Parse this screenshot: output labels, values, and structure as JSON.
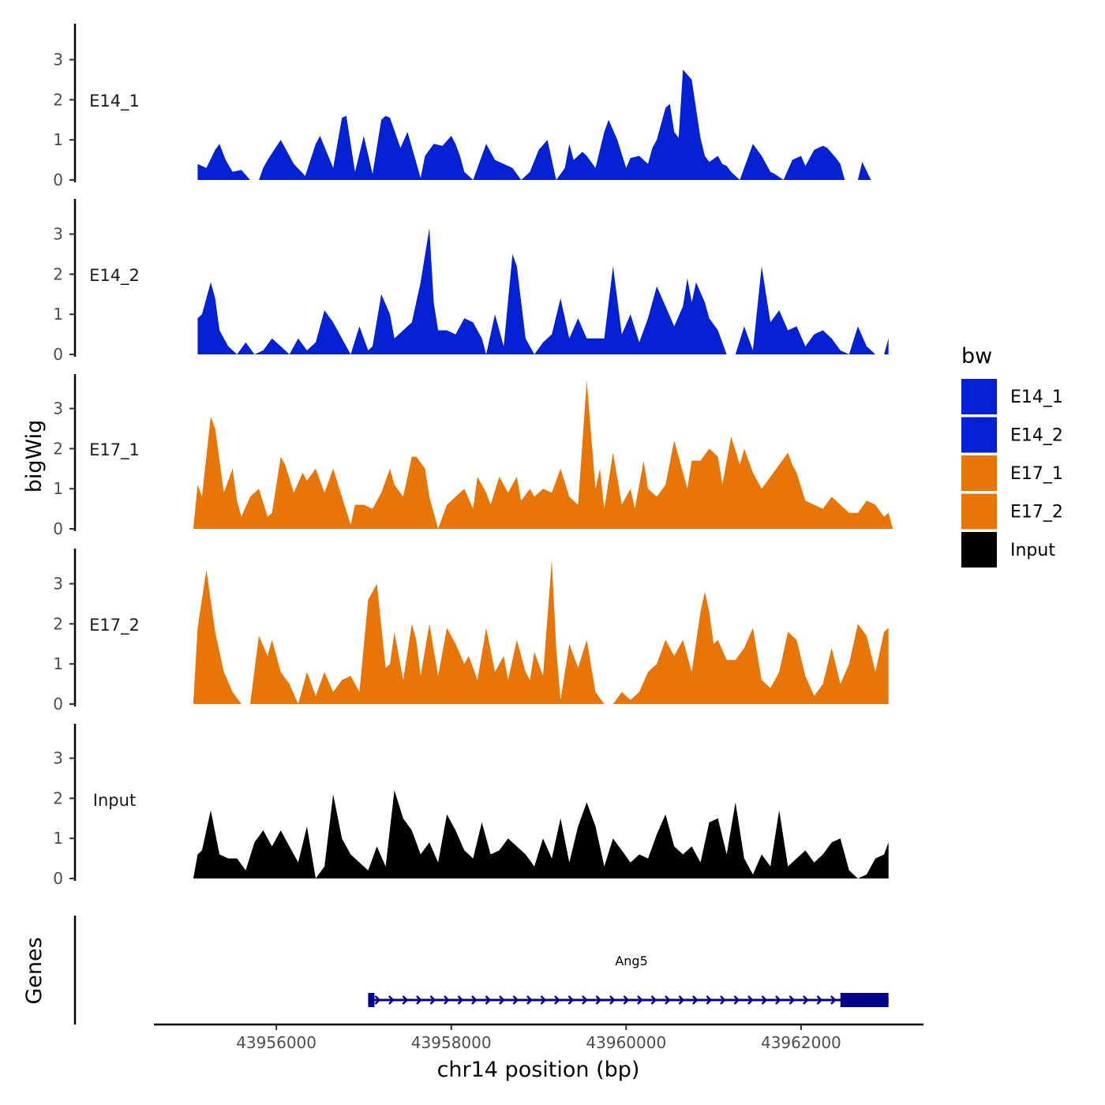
{
  "chart_data": {
    "type": "area",
    "title": "",
    "xlabel": "chr14 position (bp)",
    "ylabel": "bigWig",
    "genes_label": "Genes",
    "xlim": [
      43954600,
      43963400
    ],
    "ylim": [
      0,
      3.8
    ],
    "x_ticks": [
      43956000,
      43958000,
      43960000,
      43962000
    ],
    "x_tick_labels": [
      "43956000",
      "43958000",
      "43960000",
      "43962000"
    ],
    "y_ticks": [
      0,
      1,
      2,
      3
    ],
    "y_tick_labels": [
      "0",
      "1",
      "2",
      "3"
    ],
    "legend": {
      "title": "bw",
      "position": "right",
      "entries": [
        {
          "label": "E14_1",
          "color": "#0320d2"
        },
        {
          "label": "E14_2",
          "color": "#0320d2"
        },
        {
          "label": "E17_1",
          "color": "#e87508"
        },
        {
          "label": "E17_2",
          "color": "#e87508"
        },
        {
          "label": "Input",
          "color": "#000000"
        }
      ]
    },
    "series": [
      {
        "name": "E14_1",
        "color": "#0320d2",
        "x": [
          43955100,
          43955200,
          43955300,
          43955350,
          43955420,
          43955500,
          43955600,
          43955700,
          43955800,
          43955850,
          43955900,
          43956050,
          43956200,
          43956330,
          43956450,
          43956500,
          43956650,
          43956750,
          43956800,
          43956900,
          43957000,
          43957100,
          43957200,
          43957250,
          43957300,
          43957420,
          43957500,
          43957650,
          43957700,
          43957800,
          43957900,
          43958000,
          43958050,
          43958100,
          43958150,
          43958250,
          43958300,
          43958400,
          43958500,
          43958600,
          43958700,
          43958800,
          43958900,
          43959000,
          43959100,
          43959200,
          43959300,
          43959350,
          43959400,
          43959500,
          43959550,
          43959650,
          43959750,
          43959800,
          43959900,
          43960000,
          43960050,
          43960150,
          43960250,
          43960300,
          43960350,
          43960450,
          43960500,
          43960550,
          43960600,
          43960650,
          43960750,
          43960850,
          43960900,
          43960950,
          43961050,
          43961100,
          43961150,
          43961200,
          43961300,
          43961450,
          43961550,
          43961650,
          43961700,
          43961800,
          43961900,
          43962000,
          43962050,
          43962150,
          43962250,
          43962300,
          43962400,
          43962450,
          43962500,
          43962600,
          43962650,
          43962700,
          43962800,
          43962900,
          43963000
        ],
        "y": [
          0.4,
          0.3,
          0.75,
          0.9,
          0.5,
          0.2,
          0.25,
          0.0,
          0.0,
          0.3,
          0.5,
          1.0,
          0.4,
          0.1,
          0.9,
          1.1,
          0.3,
          1.55,
          1.6,
          0.2,
          1.1,
          0.15,
          1.5,
          1.6,
          1.55,
          0.8,
          1.2,
          0.05,
          0.6,
          0.9,
          0.85,
          1.1,
          0.9,
          0.6,
          0.2,
          0.0,
          0.3,
          0.9,
          0.5,
          0.4,
          0.3,
          0.0,
          0.2,
          0.75,
          1.0,
          0.0,
          0.3,
          0.9,
          0.5,
          0.7,
          0.6,
          0.3,
          1.2,
          1.5,
          1.0,
          0.3,
          0.55,
          0.6,
          0.4,
          0.8,
          1.0,
          1.8,
          1.9,
          1.2,
          1.05,
          2.75,
          2.5,
          1.05,
          0.6,
          0.45,
          0.6,
          0.4,
          0.35,
          0.2,
          0.0,
          0.9,
          0.6,
          0.2,
          0.15,
          0.0,
          0.5,
          0.6,
          0.35,
          0.75,
          0.85,
          0.8,
          0.55,
          0.4,
          0.0,
          0.0,
          0.0,
          0.45,
          0.0,
          0.0,
          0.0
        ]
      },
      {
        "name": "E14_2",
        "color": "#0320d2",
        "x": [
          43955100,
          43955150,
          43955250,
          43955300,
          43955350,
          43955450,
          43955550,
          43955650,
          43955750,
          43955850,
          43955950,
          43956050,
          43956150,
          43956250,
          43956350,
          43956450,
          43956550,
          43956650,
          43956750,
          43956850,
          43956950,
          43957050,
          43957100,
          43957200,
          43957300,
          43957350,
          43957450,
          43957550,
          43957650,
          43957750,
          43957800,
          43957850,
          43957950,
          43958050,
          43958150,
          43958250,
          43958350,
          43958400,
          43958500,
          43958600,
          43958700,
          43958750,
          43958850,
          43958950,
          43959050,
          43959150,
          43959250,
          43959350,
          43959450,
          43959550,
          43959650,
          43959750,
          43959850,
          43959950,
          43960050,
          43960150,
          43960250,
          43960350,
          43960450,
          43960550,
          43960650,
          43960700,
          43960750,
          43960800,
          43960900,
          43960950,
          43961050,
          43961150,
          43961250,
          43961350,
          43961450,
          43961550,
          43961650,
          43961750,
          43961850,
          43961950,
          43962050,
          43962150,
          43962250,
          43962350,
          43962450,
          43962550,
          43962650,
          43962750,
          43962850,
          43962950,
          43963000
        ],
        "y": [
          0.9,
          1.0,
          1.8,
          1.4,
          0.6,
          0.2,
          0.0,
          0.3,
          0.0,
          0.1,
          0.4,
          0.2,
          0.0,
          0.4,
          0.1,
          0.3,
          1.1,
          0.8,
          0.4,
          0.0,
          0.7,
          0.1,
          0.2,
          1.5,
          1.0,
          0.4,
          0.6,
          0.8,
          1.8,
          3.15,
          1.3,
          0.6,
          0.6,
          0.5,
          0.9,
          0.8,
          0.4,
          0.0,
          1.0,
          0.2,
          2.5,
          2.2,
          0.4,
          0.0,
          0.3,
          0.5,
          1.4,
          0.4,
          0.9,
          0.4,
          0.4,
          0.4,
          2.2,
          0.5,
          1.0,
          0.3,
          0.9,
          1.7,
          1.2,
          0.7,
          1.2,
          1.9,
          1.3,
          1.8,
          1.3,
          0.9,
          0.6,
          0.0,
          0.0,
          0.7,
          0.1,
          2.2,
          0.8,
          1.1,
          0.6,
          0.7,
          0.2,
          0.5,
          0.6,
          0.4,
          0.1,
          0.0,
          0.7,
          0.2,
          0.0,
          0.0,
          0.4
        ]
      },
      {
        "name": "E17_1",
        "color": "#e87508",
        "x": [
          43955050,
          43955100,
          43955150,
          43955250,
          43955300,
          43955400,
          43955500,
          43955550,
          43955600,
          43955700,
          43955800,
          43955900,
          43955950,
          43956050,
          43956100,
          43956200,
          43956300,
          43956350,
          43956450,
          43956550,
          43956650,
          43956750,
          43956850,
          43956900,
          43957000,
          43957100,
          43957200,
          43957300,
          43957350,
          43957450,
          43957550,
          43957600,
          43957700,
          43957750,
          43957850,
          43957950,
          43958050,
          43958150,
          43958250,
          43958300,
          43958400,
          43958450,
          43958550,
          43958650,
          43958750,
          43958800,
          43958900,
          43958950,
          43959050,
          43959150,
          43959250,
          43959350,
          43959450,
          43959550,
          43959650,
          43959700,
          43959750,
          43959850,
          43959950,
          43960050,
          43960100,
          43960200,
          43960250,
          43960350,
          43960450,
          43960550,
          43960650,
          43960700,
          43960750,
          43960850,
          43960950,
          43961050,
          43961100,
          43961200,
          43961300,
          43961350,
          43961450,
          43961550,
          43961650,
          43961750,
          43961850,
          43961900,
          43961950,
          43962050,
          43962150,
          43962250,
          43962350,
          43962450,
          43962550,
          43962650,
          43962750,
          43962850,
          43962950,
          43963000,
          43963050
        ],
        "y": [
          0.0,
          1.1,
          0.8,
          2.8,
          2.5,
          0.9,
          1.5,
          0.7,
          0.3,
          0.8,
          1.0,
          0.3,
          0.4,
          1.8,
          1.6,
          0.9,
          1.4,
          1.2,
          1.5,
          0.9,
          1.5,
          0.8,
          0.1,
          0.6,
          0.6,
          0.5,
          0.9,
          1.5,
          1.1,
          0.8,
          1.8,
          1.8,
          1.5,
          0.8,
          0.0,
          0.6,
          0.8,
          1.0,
          0.5,
          1.3,
          0.9,
          0.6,
          1.3,
          0.9,
          1.3,
          0.7,
          1.0,
          0.8,
          1.0,
          0.9,
          1.5,
          0.8,
          0.6,
          3.7,
          1.0,
          1.5,
          0.5,
          1.9,
          0.6,
          1.0,
          0.5,
          1.7,
          1.0,
          0.8,
          1.1,
          2.2,
          1.4,
          1.0,
          1.7,
          1.7,
          2.0,
          1.8,
          1.1,
          2.3,
          1.6,
          2.0,
          1.4,
          1.0,
          1.3,
          1.6,
          1.9,
          1.6,
          1.4,
          0.7,
          0.6,
          0.5,
          0.8,
          0.6,
          0.4,
          0.4,
          0.7,
          0.6,
          0.3,
          0.4,
          0.0
        ]
      },
      {
        "name": "E17_2",
        "color": "#e87508",
        "x": [
          43955050,
          43955100,
          43955200,
          43955300,
          43955400,
          43955500,
          43955600,
          43955700,
          43955800,
          43955900,
          43955950,
          43956050,
          43956150,
          43956250,
          43956350,
          43956450,
          43956550,
          43956650,
          43956750,
          43956850,
          43956950,
          43957050,
          43957150,
          43957250,
          43957300,
          43957350,
          43957450,
          43957550,
          43957600,
          43957650,
          43957750,
          43957850,
          43957950,
          43958050,
          43958150,
          43958200,
          43958300,
          43958400,
          43958500,
          43958600,
          43958650,
          43958750,
          43958850,
          43958900,
          43958950,
          43959050,
          43959150,
          43959200,
          43959250,
          43959350,
          43959450,
          43959550,
          43959650,
          43959750,
          43959850,
          43959950,
          43960050,
          43960150,
          43960250,
          43960350,
          43960450,
          43960550,
          43960650,
          43960750,
          43960850,
          43960900,
          43960950,
          43961000,
          43961050,
          43961150,
          43961250,
          43961350,
          43961450,
          43961550,
          43961650,
          43961750,
          43961850,
          43961950,
          43962050,
          43962150,
          43962250,
          43962350,
          43962450,
          43962550,
          43962650,
          43962750,
          43962850,
          43962950,
          43963000
        ],
        "y": [
          0.0,
          1.9,
          3.35,
          1.8,
          0.8,
          0.3,
          0.0,
          0.0,
          1.7,
          1.2,
          1.6,
          0.8,
          0.5,
          0.0,
          0.8,
          0.2,
          0.8,
          0.3,
          0.6,
          0.7,
          0.3,
          2.6,
          3.0,
          0.9,
          1.0,
          1.8,
          0.6,
          2.0,
          1.6,
          0.7,
          2.0,
          0.7,
          1.9,
          1.5,
          1.0,
          1.2,
          0.6,
          1.9,
          0.8,
          1.2,
          0.6,
          1.6,
          0.8,
          0.6,
          1.3,
          0.7,
          3.6,
          1.4,
          0.1,
          1.5,
          0.9,
          1.6,
          0.3,
          0.0,
          0.0,
          0.3,
          0.1,
          0.3,
          0.8,
          1.0,
          1.6,
          1.2,
          1.6,
          0.8,
          2.3,
          2.8,
          2.3,
          1.5,
          1.6,
          1.1,
          1.1,
          1.4,
          1.9,
          0.6,
          0.4,
          0.8,
          1.8,
          1.6,
          0.7,
          0.2,
          0.5,
          1.4,
          0.5,
          1.0,
          2.0,
          1.7,
          0.8,
          1.8,
          1.9
        ]
      },
      {
        "name": "Input",
        "color": "#000000",
        "x": [
          43955050,
          43955100,
          43955150,
          43955250,
          43955350,
          43955450,
          43955550,
          43955650,
          43955750,
          43955850,
          43955950,
          43956050,
          43956150,
          43956250,
          43956350,
          43956450,
          43956550,
          43956650,
          43956750,
          43956850,
          43956950,
          43957050,
          43957150,
          43957250,
          43957350,
          43957450,
          43957550,
          43957650,
          43957750,
          43957850,
          43957950,
          43958050,
          43958150,
          43958250,
          43958350,
          43958450,
          43958550,
          43958650,
          43958750,
          43958850,
          43958950,
          43959050,
          43959150,
          43959250,
          43959350,
          43959450,
          43959550,
          43959650,
          43959750,
          43959850,
          43959950,
          43960050,
          43960150,
          43960250,
          43960350,
          43960450,
          43960550,
          43960650,
          43960750,
          43960850,
          43960950,
          43961050,
          43961150,
          43961250,
          43961350,
          43961450,
          43961550,
          43961650,
          43961750,
          43961850,
          43961950,
          43962050,
          43962150,
          43962250,
          43962350,
          43962450,
          43962550,
          43962650,
          43962750,
          43962850,
          43962950,
          43963000
        ],
        "y": [
          0.0,
          0.6,
          0.7,
          1.7,
          0.6,
          0.5,
          0.5,
          0.2,
          0.9,
          1.2,
          0.8,
          1.2,
          0.8,
          0.4,
          1.3,
          0.0,
          0.3,
          2.1,
          1.0,
          0.6,
          0.4,
          0.2,
          0.8,
          0.3,
          2.2,
          1.5,
          1.2,
          0.6,
          0.9,
          0.4,
          1.6,
          1.2,
          0.7,
          0.5,
          1.4,
          0.6,
          0.7,
          1.0,
          0.8,
          0.6,
          0.3,
          1.0,
          0.5,
          1.5,
          0.4,
          1.3,
          1.9,
          1.3,
          0.3,
          1.0,
          0.7,
          0.4,
          0.6,
          0.5,
          1.1,
          1.6,
          0.8,
          0.6,
          0.8,
          0.4,
          1.4,
          1.5,
          0.6,
          1.9,
          0.5,
          0.1,
          0.6,
          0.3,
          1.7,
          0.3,
          0.5,
          0.7,
          0.4,
          0.6,
          0.9,
          1.0,
          0.2,
          0.0,
          0.1,
          0.5,
          0.6,
          0.9
        ]
      }
    ],
    "genes": [
      {
        "name": "Ang5",
        "start": 43957050,
        "end": 43963000,
        "strand": "+",
        "exons": [
          [
            43957050,
            43957120
          ],
          [
            43962450,
            43963000
          ]
        ],
        "color": "#00008b"
      }
    ]
  }
}
